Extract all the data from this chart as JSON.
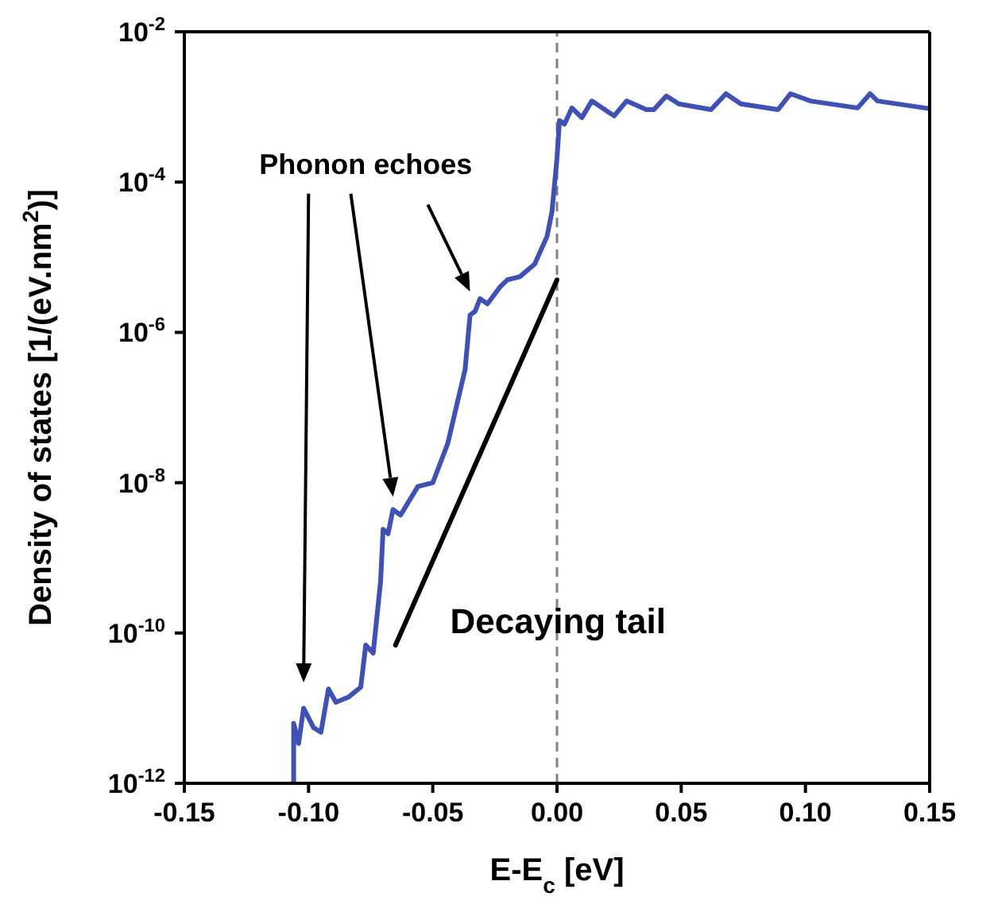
{
  "chart_data": {
    "type": "line",
    "xlabel": "E-E$_{c}$ [eV]",
    "ylabel": "Density of states [1/(eV.nm$^{2}$)]",
    "log": "y",
    "xlim": [
      -0.15,
      0.15
    ],
    "xticks": [
      {
        "value": -0.15,
        "label": "-0.15"
      },
      {
        "value": -0.1,
        "label": "-0.10"
      },
      {
        "value": -0.05,
        "label": "-0.05"
      },
      {
        "value": 0,
        "label": "0.00"
      },
      {
        "value": 0.05,
        "label": "0.05"
      },
      {
        "value": 0.1,
        "label": "0.10"
      },
      {
        "value": 0.15,
        "label": "0.15"
      }
    ],
    "ylim": [
      1e-12,
      0.01
    ],
    "yticks": [
      {
        "value": 1e-12,
        "label": "10$^{-12}$"
      },
      {
        "value": 1e-10,
        "label": "10$^{-10}$"
      },
      {
        "value": 1e-08,
        "label": "10$^{-8}$"
      },
      {
        "value": 1e-06,
        "label": "10$^{-6}$"
      },
      {
        "value": 0.0001,
        "label": "10$^{-4}$"
      },
      {
        "value": 0.01,
        "label": "10$^{-2}$"
      }
    ],
    "marker": "none",
    "line_style": "solid",
    "series": [
      {
        "color": "#3f51b5",
        "x": [
          -0.106,
          -0.106,
          -0.104,
          -0.102,
          -0.098,
          -0.095,
          -0.092,
          -0.089,
          -0.084,
          -0.079,
          -0.077,
          -0.074,
          -0.071,
          -0.07,
          -0.068,
          -0.066,
          -0.063,
          -0.056,
          -0.05,
          -0.044,
          -0.037,
          -0.035,
          -0.033,
          -0.031,
          -0.028,
          -0.023,
          -0.02,
          -0.015,
          -0.009,
          -0.004,
          -0.002,
          0,
          0.001,
          0.003,
          0.006,
          0.01,
          0.014,
          0.023,
          0.028,
          0.036,
          0.039,
          0.044,
          0.049,
          0.062,
          0.068,
          0.074,
          0.089,
          0.094,
          0.102,
          0.121,
          0.126,
          0.129,
          0.148,
          0.15
        ],
        "values": [
          1e-12,
          6.3e-12,
          3.4e-12,
          1e-11,
          5.5e-12,
          4.8e-12,
          1.8e-11,
          1.2e-11,
          1.4e-11,
          1.9e-11,
          6.9e-11,
          5.4e-11,
          4.9e-10,
          2.4e-09,
          2.1e-09,
          4.4e-09,
          3.7e-09,
          8.9e-09,
          1e-08,
          3.3e-08,
          3.2e-07,
          1.7e-06,
          1.9e-06,
          2.8e-06,
          2.4e-06,
          4e-06,
          5e-06,
          5.5e-06,
          8.1e-06,
          1.9e-05,
          4.1e-05,
          0.00021,
          0.00066,
          0.00059,
          0.00097,
          0.00072,
          0.0012,
          0.00076,
          0.0012,
          0.00092,
          0.00092,
          0.0014,
          0.0011,
          0.00092,
          0.0015,
          0.0011,
          0.00092,
          0.0015,
          0.0012,
          0.00097,
          0.0015,
          0.0012,
          0.00097,
          0.00095
        ]
      },
      {
        "type": "line",
        "color": "#000000",
        "x": [
          -0.065,
          0
        ],
        "values": [
          6.9e-11,
          5e-06
        ]
      }
    ],
    "ref_lines": [
      {
        "axis": "x",
        "value": 0,
        "color": "#808080",
        "line_style": "dashed"
      }
    ],
    "annotations": [
      "Phonon echoes",
      "Decaying tail"
    ]
  }
}
